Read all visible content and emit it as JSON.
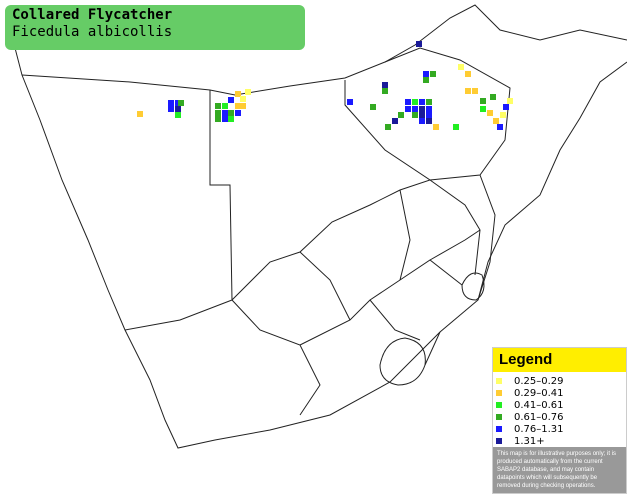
{
  "header": {
    "title": "Collared Flycatcher",
    "subtitle": "Ficedula albicollis"
  },
  "legend": {
    "title": "Legend",
    "entries": [
      {
        "label": "0.25–0.29",
        "color": "#ffff66"
      },
      {
        "label": "0.29–0.41",
        "color": "#ffcc33"
      },
      {
        "label": "0.41–0.61",
        "color": "#22ee22"
      },
      {
        "label": "0.61–0.76",
        "color": "#33aa22"
      },
      {
        "label": "0.76–1.31",
        "color": "#1a1aff"
      },
      {
        "label": "1.31+",
        "color": "#1a1a99"
      }
    ],
    "disclaimer": "This map is for illustrative purposes only; it is produced automatically from the current SABAP2 database, and may contain datapoints which will subsequently be removed during checking operations."
  }
}
